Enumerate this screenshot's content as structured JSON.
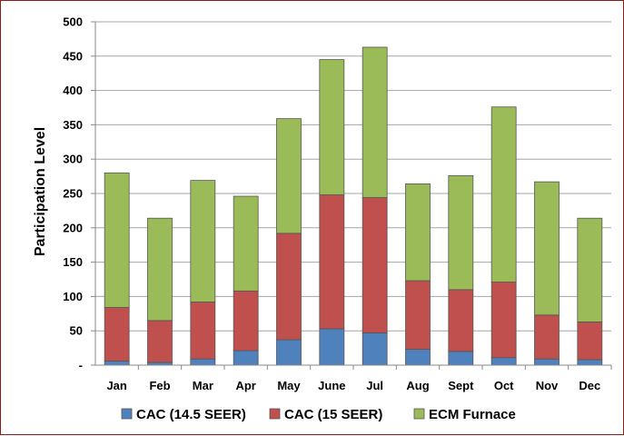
{
  "chart_data": {
    "type": "bar",
    "stacked": true,
    "categories": [
      "Jan",
      "Feb",
      "Mar",
      "Apr",
      "May",
      "June",
      "Jul",
      "Aug",
      "Sept",
      "Oct",
      "Nov",
      "Dec"
    ],
    "series": [
      {
        "name": "CAC (14.5 SEER)",
        "color": "#4f81bd",
        "values": [
          6,
          4,
          9,
          21,
          37,
          53,
          47,
          23,
          20,
          11,
          9,
          8
        ]
      },
      {
        "name": "CAC (15 SEER)",
        "color": "#c0504d",
        "values": [
          78,
          61,
          83,
          87,
          155,
          195,
          197,
          100,
          90,
          110,
          64,
          55
        ]
      },
      {
        "name": "ECM Furnace",
        "color": "#9bbb59",
        "values": [
          196,
          149,
          177,
          138,
          167,
          197,
          219,
          141,
          166,
          255,
          194,
          151
        ]
      }
    ],
    "title": "",
    "xlabel": "",
    "ylabel": "Participation Level",
    "ylim": [
      0,
      500
    ],
    "yticks": [
      0,
      50,
      100,
      150,
      200,
      250,
      300,
      350,
      400,
      450,
      500
    ],
    "ytick_labels": [
      "-",
      "50",
      "100",
      "150",
      "200",
      "250",
      "300",
      "350",
      "400",
      "450",
      "500"
    ],
    "grid": true,
    "legend_position": "bottom"
  }
}
